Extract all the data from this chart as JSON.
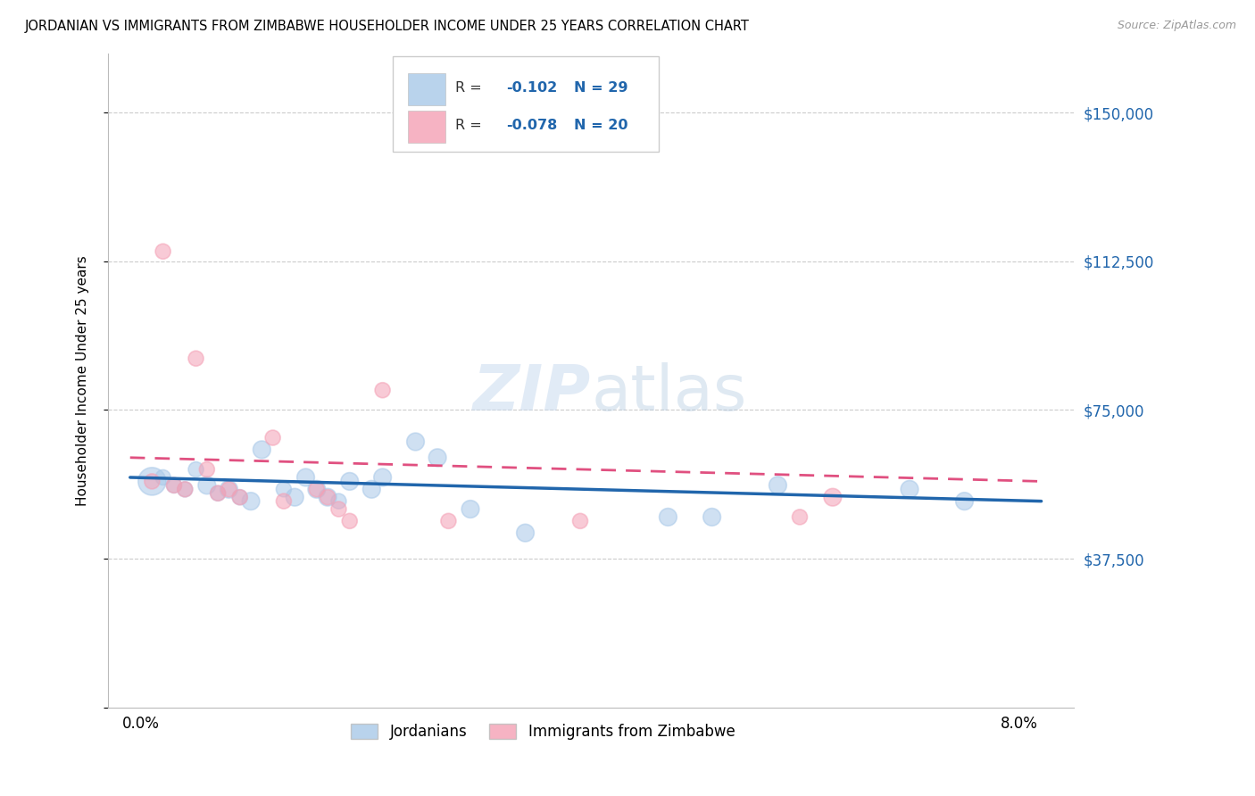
{
  "title": "JORDANIAN VS IMMIGRANTS FROM ZIMBABWE HOUSEHOLDER INCOME UNDER 25 YEARS CORRELATION CHART",
  "source": "Source: ZipAtlas.com",
  "ylabel": "Householder Income Under 25 years",
  "yticks": [
    0,
    37500,
    75000,
    112500,
    150000
  ],
  "ytick_labels": [
    "",
    "$37,500",
    "$75,000",
    "$112,500",
    "$150,000"
  ],
  "blue_color": "#a8c8e8",
  "pink_color": "#f4a0b5",
  "blue_line_color": "#2166ac",
  "pink_line_color": "#e05080",
  "watermark_zip": "ZIP",
  "watermark_atlas": "atlas",
  "jordanians_x": [
    0.001,
    0.002,
    0.003,
    0.004,
    0.005,
    0.006,
    0.007,
    0.008,
    0.009,
    0.01,
    0.011,
    0.013,
    0.014,
    0.015,
    0.016,
    0.017,
    0.018,
    0.019,
    0.021,
    0.022,
    0.025,
    0.027,
    0.03,
    0.035,
    0.048,
    0.052,
    0.058,
    0.07,
    0.075
  ],
  "jordanians_y": [
    57000,
    58000,
    56000,
    55000,
    60000,
    56000,
    54000,
    55000,
    53000,
    52000,
    65000,
    55000,
    53000,
    58000,
    55000,
    53000,
    52000,
    57000,
    55000,
    58000,
    67000,
    63000,
    50000,
    44000,
    48000,
    48000,
    56000,
    55000,
    52000
  ],
  "jordanians_size": [
    500,
    150,
    150,
    150,
    150,
    200,
    150,
    200,
    150,
    200,
    200,
    150,
    200,
    200,
    200,
    200,
    150,
    200,
    200,
    200,
    200,
    200,
    200,
    200,
    200,
    200,
    200,
    200,
    200
  ],
  "zimbabwe_x": [
    0.001,
    0.002,
    0.003,
    0.004,
    0.005,
    0.006,
    0.007,
    0.008,
    0.009,
    0.012,
    0.013,
    0.016,
    0.017,
    0.018,
    0.019,
    0.022,
    0.028,
    0.04,
    0.06,
    0.063
  ],
  "zimbabwe_y": [
    57000,
    115000,
    56000,
    55000,
    88000,
    60000,
    54000,
    55000,
    53000,
    68000,
    52000,
    55000,
    53000,
    50000,
    47000,
    80000,
    47000,
    47000,
    48000,
    53000
  ],
  "zimbabwe_size": [
    150,
    150,
    150,
    150,
    150,
    150,
    150,
    150,
    150,
    150,
    150,
    150,
    150,
    150,
    150,
    150,
    150,
    150,
    150,
    200
  ],
  "xlim": [
    -0.003,
    0.085
  ],
  "ylim": [
    0,
    165000
  ],
  "legend_r1": "R = ",
  "legend_v1": "-0.102",
  "legend_n1": "N = 29",
  "legend_r2": "R = ",
  "legend_v2": "-0.078",
  "legend_n2": "N = 20"
}
